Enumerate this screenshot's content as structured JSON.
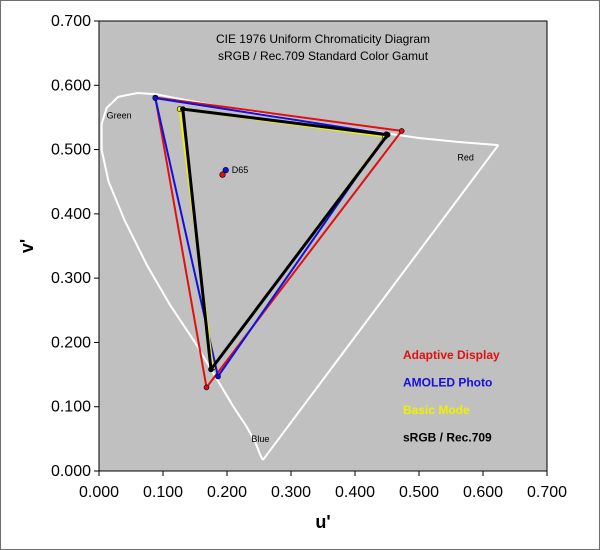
{
  "chart_data": {
    "type": "scatter",
    "title": "CIE 1976 Uniform Chromaticity Diagram",
    "subtitle": "sRGB / Rec.709 Standard Color Gamut",
    "xlabel": "u'",
    "ylabel": "v'",
    "xlim": [
      0,
      0.7
    ],
    "ylim": [
      0,
      0.7
    ],
    "x_ticks": [
      "0.000",
      "0.100",
      "0.200",
      "0.300",
      "0.400",
      "0.500",
      "0.600",
      "0.700"
    ],
    "y_ticks": [
      "0.000",
      "0.100",
      "0.200",
      "0.300",
      "0.400",
      "0.500",
      "0.600",
      "0.700"
    ],
    "grid": false,
    "plot_background": "#c0c0c0",
    "spectral_locus": {
      "color": "#ffffff",
      "points": [
        [
          0.256,
          0.017
        ],
        [
          0.252,
          0.025
        ],
        [
          0.244,
          0.045
        ],
        [
          0.23,
          0.07
        ],
        [
          0.21,
          0.1
        ],
        [
          0.18,
          0.15
        ],
        [
          0.15,
          0.2
        ],
        [
          0.11,
          0.26
        ],
        [
          0.075,
          0.32
        ],
        [
          0.04,
          0.39
        ],
        [
          0.015,
          0.45
        ],
        [
          0.004,
          0.5
        ],
        [
          0.004,
          0.54
        ],
        [
          0.012,
          0.565
        ],
        [
          0.03,
          0.582
        ],
        [
          0.06,
          0.588
        ],
        [
          0.09,
          0.586
        ],
        [
          0.13,
          0.578
        ],
        [
          0.2,
          0.565
        ],
        [
          0.3,
          0.547
        ],
        [
          0.4,
          0.532
        ],
        [
          0.5,
          0.518
        ],
        [
          0.56,
          0.512
        ],
        [
          0.624,
          0.507
        ]
      ],
      "closing_color": "#ffffff"
    },
    "series": [
      {
        "name": "Adaptive Display",
        "color": "#e01010",
        "points": [
          [
            0.088,
            0.581
          ],
          [
            0.473,
            0.529
          ],
          [
            0.168,
            0.13
          ]
        ]
      },
      {
        "name": "AMOLED Photo",
        "color": "#1010e0",
        "points": [
          [
            0.088,
            0.58
          ],
          [
            0.449,
            0.524
          ],
          [
            0.186,
            0.147
          ]
        ]
      },
      {
        "name": "Basic Mode",
        "color": "#f0f000",
        "points": [
          [
            0.126,
            0.563
          ],
          [
            0.447,
            0.52
          ],
          [
            0.178,
            0.161
          ]
        ]
      },
      {
        "name": "sRGB / Rec.709",
        "color": "#000000",
        "points": [
          [
            0.131,
            0.563
          ],
          [
            0.451,
            0.523
          ],
          [
            0.175,
            0.158
          ]
        ]
      }
    ],
    "white_points": [
      {
        "label": "D65",
        "x": 0.198,
        "y": 0.468,
        "color": "#1010e0"
      },
      {
        "label": "",
        "x": 0.193,
        "y": 0.461,
        "color": "#e01010"
      }
    ],
    "annotations": [
      {
        "text": "Green",
        "x": 0.012,
        "y": 0.548
      },
      {
        "text": "Red",
        "x": 0.56,
        "y": 0.483
      },
      {
        "text": "Blue",
        "x": 0.238,
        "y": 0.045
      }
    ],
    "legend": {
      "placement": "bottom-right",
      "entries": [
        {
          "label": "Adaptive Display",
          "color": "#e01010"
        },
        {
          "label": "AMOLED Photo",
          "color": "#1010e0"
        },
        {
          "label": "Basic Mode",
          "color": "#f0f000"
        },
        {
          "label": "sRGB / Rec.709",
          "color": "#000000"
        }
      ]
    }
  }
}
